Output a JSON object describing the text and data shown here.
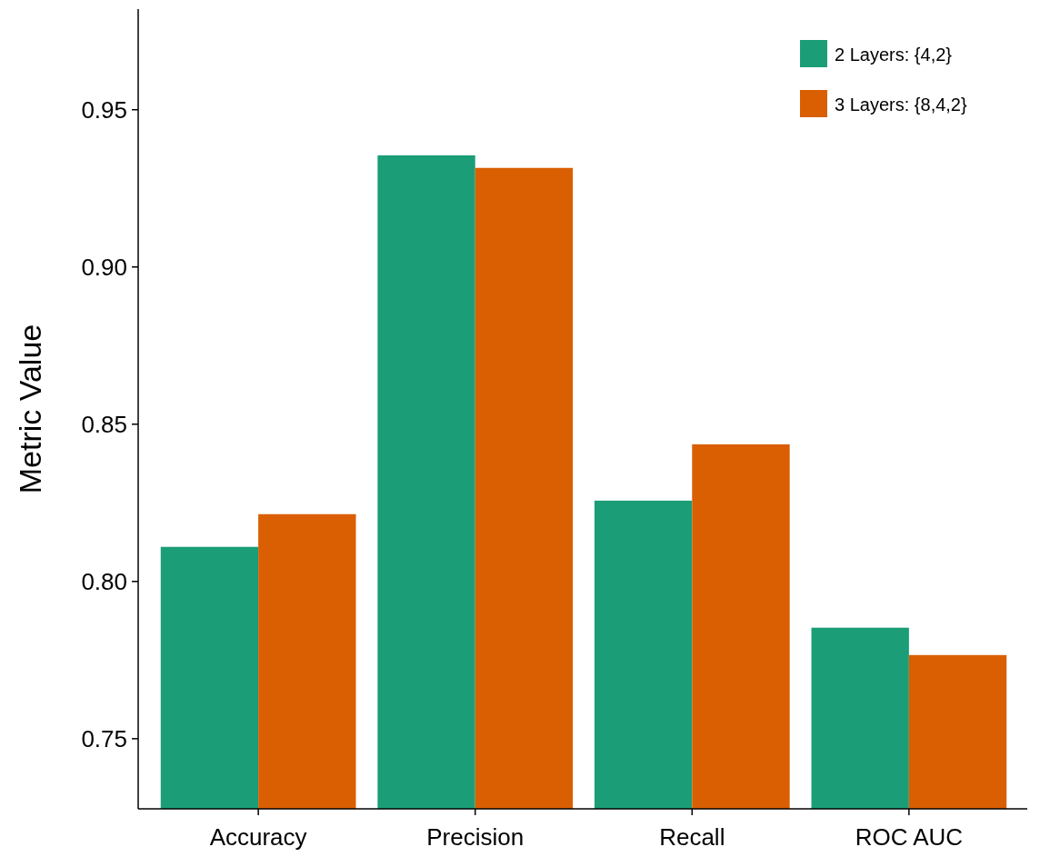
{
  "chart_data": {
    "type": "bar",
    "ylabel": "Metric Value",
    "categories": [
      "Accuracy",
      "Precision",
      "Recall",
      "ROC AUC"
    ],
    "series": [
      {
        "name": "2 Layers: {4,2}",
        "color": "#1b9e77",
        "values": [
          0.811,
          0.9355,
          0.8257,
          0.7853
        ]
      },
      {
        "name": "3 Layers: {8,4,2}",
        "color": "#d95f02",
        "values": [
          0.8214,
          0.9315,
          0.8436,
          0.7766
        ]
      }
    ],
    "ylim": [
      0.7277,
      0.982
    ],
    "yticks": [
      {
        "value": 0.75,
        "label": "0.75"
      },
      {
        "value": 0.8,
        "label": "0.80"
      },
      {
        "value": 0.85,
        "label": "0.85"
      },
      {
        "value": 0.9,
        "label": "0.90"
      },
      {
        "value": 0.95,
        "label": "0.95"
      }
    ],
    "grid": false,
    "legend": "top right"
  }
}
